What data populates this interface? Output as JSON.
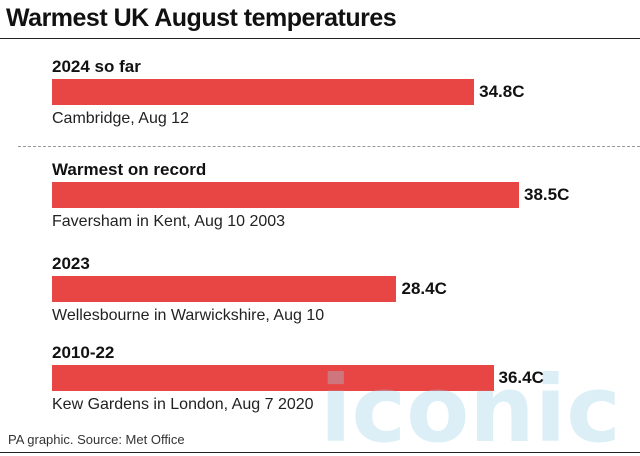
{
  "title": "Warmest UK August temperatures",
  "source": "PA graphic. Source: Met Office",
  "watermark": "iconic",
  "colors": {
    "bar": "#e84545",
    "watermark": "#9fd3e6"
  },
  "chart_data": {
    "type": "bar",
    "orientation": "horizontal",
    "title": "Warmest UK August temperatures",
    "unit": "C",
    "categories": [
      "2024 so far",
      "Warmest on record",
      "2023",
      "2010-22"
    ],
    "values": [
      34.8,
      38.5,
      28.4,
      36.4
    ],
    "value_labels": [
      "34.8C",
      "38.5C",
      "28.4C",
      "36.4C"
    ],
    "annotations": [
      "Cambridge, Aug 12",
      "Faversham in Kent, Aug 10 2003",
      "Wellesbourne in Warwickshire, Aug 10",
      "Kew Gardens in London, Aug 7 2020"
    ],
    "xlim": [
      0,
      42
    ],
    "grid": false,
    "legend": "none"
  }
}
